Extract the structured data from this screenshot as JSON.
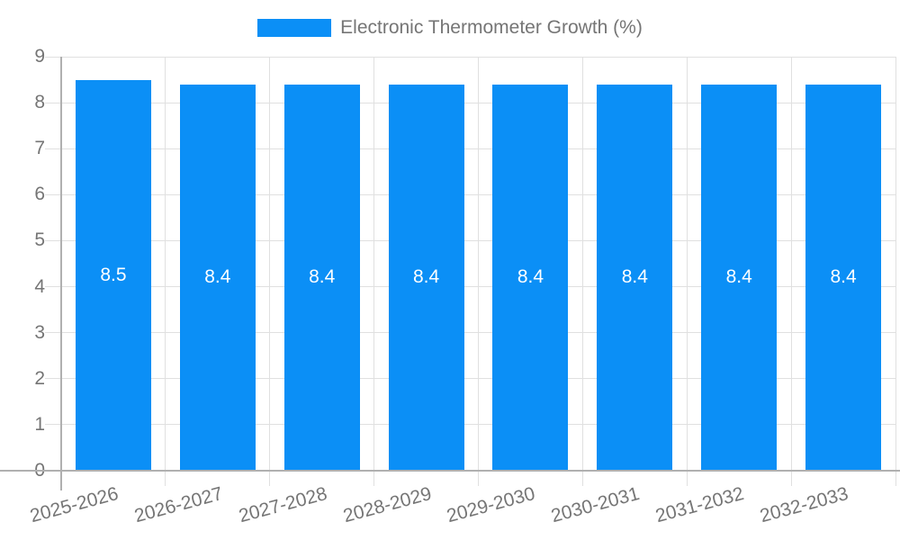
{
  "chart_data": {
    "type": "bar",
    "title": "",
    "legend": {
      "label": "Electronic Thermometer Growth (%)",
      "position": "top"
    },
    "categories": [
      "2025-2026",
      "2026-2027",
      "2027-2028",
      "2028-2029",
      "2029-2030",
      "2030-2031",
      "2031-2032",
      "2032-2033"
    ],
    "series": [
      {
        "name": "Electronic Thermometer Growth (%)",
        "values": [
          8.5,
          8.4,
          8.4,
          8.4,
          8.4,
          8.4,
          8.4,
          8.4
        ]
      }
    ],
    "value_labels": [
      "8.5",
      "8.4",
      "8.4",
      "8.4",
      "8.4",
      "8.4",
      "8.4",
      "8.4"
    ],
    "xlabel": "",
    "ylabel": "",
    "ylim": [
      0,
      9
    ],
    "yticks": [
      0,
      1,
      2,
      3,
      4,
      5,
      6,
      7,
      8,
      9
    ],
    "grid": true,
    "x_label_rotation_deg": -15,
    "colors": {
      "bar": "#0b8ff6",
      "grid": "#e0e0e0",
      "axis": "#b0b0b0",
      "text": "#757575",
      "value_label": "#ffffff",
      "background": "#ffffff"
    }
  }
}
